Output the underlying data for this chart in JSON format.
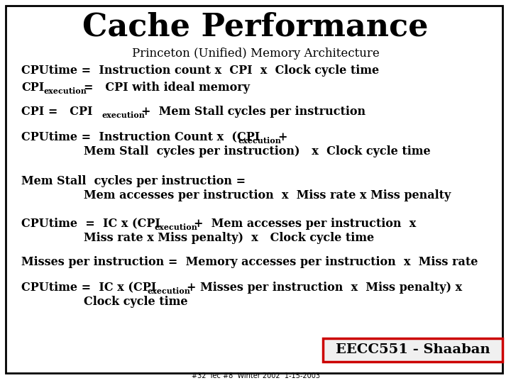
{
  "title": "Cache Performance",
  "background_color": "#ffffff",
  "border_color": "#000000",
  "text_color": "#000000",
  "title_fontsize": 32,
  "body_fontsize": 11.5,
  "sub_fontsize": 8,
  "footer_text": "#32  lec #8  Winter 2002  1-15-2003",
  "box_label": "EECC551 - Shaaban"
}
